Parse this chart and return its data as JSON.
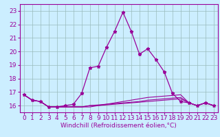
{
  "xlabel": "Windchill (Refroidissement éolien,°C)",
  "background_color": "#cceeff",
  "line_color": "#990099",
  "grid_color": "#99bbbb",
  "xlim": [
    -0.5,
    23.5
  ],
  "ylim": [
    15.5,
    23.5
  ],
  "yticks": [
    16,
    17,
    18,
    19,
    20,
    21,
    22,
    23
  ],
  "xticks": [
    0,
    1,
    2,
    3,
    4,
    5,
    6,
    7,
    8,
    9,
    10,
    11,
    12,
    13,
    14,
    15,
    16,
    17,
    18,
    19,
    20,
    21,
    22,
    23
  ],
  "main_x": [
    0,
    1,
    2,
    3,
    4,
    5,
    6,
    7,
    8,
    9,
    10,
    11,
    12,
    13,
    14,
    15,
    16,
    17,
    18,
    19,
    20,
    21,
    22,
    23
  ],
  "main_y": [
    16.8,
    16.4,
    16.3,
    15.9,
    15.9,
    16.0,
    16.1,
    16.9,
    18.8,
    18.9,
    20.3,
    21.5,
    22.9,
    21.5,
    19.8,
    20.2,
    19.4,
    18.5,
    16.9,
    16.3,
    16.2,
    16.0,
    16.2,
    16.0
  ],
  "flat1_x": [
    0,
    1,
    2,
    3,
    4,
    5,
    6,
    7,
    8,
    9,
    10,
    11,
    12,
    13,
    14,
    15,
    16,
    17,
    18,
    19,
    20,
    21,
    22,
    23
  ],
  "flat1_y": [
    16.8,
    16.4,
    16.3,
    15.9,
    15.9,
    15.9,
    15.9,
    15.9,
    15.9,
    16.0,
    16.1,
    16.2,
    16.3,
    16.4,
    16.5,
    16.6,
    16.65,
    16.7,
    16.75,
    16.8,
    16.2,
    16.0,
    16.2,
    16.0
  ],
  "flat2_x": [
    0,
    1,
    2,
    3,
    4,
    5,
    6,
    7,
    8,
    9,
    10,
    11,
    12,
    13,
    14,
    15,
    16,
    17,
    18,
    19,
    20,
    21,
    22,
    23
  ],
  "flat2_y": [
    16.8,
    16.4,
    16.3,
    15.9,
    15.9,
    15.9,
    15.9,
    15.9,
    16.0,
    16.05,
    16.1,
    16.15,
    16.2,
    16.25,
    16.3,
    16.4,
    16.45,
    16.5,
    16.55,
    16.6,
    16.2,
    16.0,
    16.2,
    16.0
  ],
  "flat3_x": [
    0,
    1,
    2,
    3,
    4,
    5,
    6,
    7,
    8,
    9,
    10,
    11,
    12,
    13,
    14,
    15,
    16,
    17,
    18,
    19,
    20,
    21,
    22,
    23
  ],
  "flat3_y": [
    16.8,
    16.4,
    16.3,
    15.9,
    15.9,
    15.9,
    15.9,
    15.9,
    16.0,
    16.0,
    16.05,
    16.1,
    16.15,
    16.2,
    16.25,
    16.3,
    16.35,
    16.4,
    16.45,
    16.5,
    16.2,
    16.0,
    16.2,
    16.0
  ],
  "tick_fontsize": 6.5,
  "xlabel_fontsize": 6.5
}
